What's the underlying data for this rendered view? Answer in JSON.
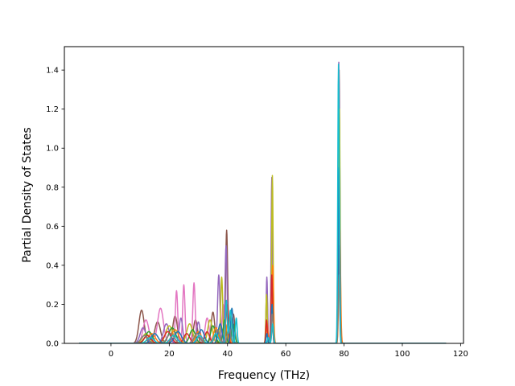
{
  "chart_data": {
    "type": "line",
    "title": "",
    "xlabel": "Frequency (THz)",
    "ylabel": "Partial Density of States",
    "xlim": [
      -16,
      121
    ],
    "ylim": [
      0,
      1.52
    ],
    "xticks": [
      0,
      20,
      40,
      60,
      80,
      100,
      120
    ],
    "yticks": [
      0.0,
      0.2,
      0.4,
      0.6,
      0.8,
      1.0,
      1.2,
      1.4
    ],
    "xtick_labels": [
      "0",
      "20",
      "40",
      "60",
      "80",
      "100",
      "120"
    ],
    "ytick_labels": [
      "0.0",
      "0.2",
      "0.4",
      "0.6",
      "0.8",
      "1.0",
      "1.2",
      "1.4"
    ],
    "grid": false,
    "legend": "none",
    "colors": [
      "#1f77b4",
      "#ff7f0e",
      "#2ca02c",
      "#d62728",
      "#9467bd",
      "#8c564b",
      "#e377c2",
      "#7f7f7f",
      "#bcbd22",
      "#17becf"
    ],
    "x_range": [
      -11,
      115
    ],
    "series": [
      {
        "color": "#8c564b",
        "peaks": [
          [
            10.5,
            0.17,
            0.9
          ],
          [
            16,
            0.11,
            1.0
          ],
          [
            22,
            0.14,
            0.8
          ],
          [
            29,
            0.12,
            0.7
          ],
          [
            35,
            0.16,
            0.6
          ],
          [
            39.7,
            0.58,
            0.35
          ],
          [
            42,
            0.15,
            0.5
          ],
          [
            53.5,
            0.28,
            0.25
          ],
          [
            55.3,
            0.8,
            0.25
          ],
          [
            78.3,
            1.4,
            0.25
          ]
        ]
      },
      {
        "color": "#e377c2",
        "peaks": [
          [
            12,
            0.12,
            1.0
          ],
          [
            17,
            0.18,
            1.0
          ],
          [
            22.5,
            0.27,
            0.4
          ],
          [
            25,
            0.3,
            0.4
          ],
          [
            28.5,
            0.31,
            0.4
          ],
          [
            33,
            0.13,
            0.7
          ],
          [
            38.5,
            0.2,
            0.4
          ],
          [
            55.3,
            0.6,
            0.3
          ],
          [
            78.3,
            1.0,
            0.3
          ]
        ]
      },
      {
        "color": "#9467bd",
        "peaks": [
          [
            11,
            0.08,
            1.0
          ],
          [
            19,
            0.1,
            1.0
          ],
          [
            24,
            0.13,
            0.6
          ],
          [
            30,
            0.11,
            0.6
          ],
          [
            37,
            0.35,
            0.4
          ],
          [
            39.5,
            0.5,
            0.35
          ],
          [
            53.5,
            0.34,
            0.25
          ],
          [
            55.2,
            0.85,
            0.25
          ],
          [
            78.2,
            1.44,
            0.25
          ]
        ]
      },
      {
        "color": "#bcbd22",
        "peaks": [
          [
            12,
            0.05,
            1.2
          ],
          [
            20,
            0.09,
            1.2
          ],
          [
            27,
            0.1,
            1.0
          ],
          [
            34,
            0.12,
            0.8
          ],
          [
            38,
            0.34,
            0.35
          ],
          [
            41,
            0.14,
            0.5
          ],
          [
            53.4,
            0.25,
            0.25
          ],
          [
            55.4,
            0.86,
            0.25
          ],
          [
            78.4,
            1.2,
            0.25
          ]
        ]
      },
      {
        "color": "#2ca02c",
        "peaks": [
          [
            13,
            0.06,
            1.2
          ],
          [
            21,
            0.08,
            1.2
          ],
          [
            28,
            0.07,
            1.0
          ],
          [
            35,
            0.09,
            0.8
          ],
          [
            39,
            0.12,
            0.5
          ],
          [
            42,
            0.1,
            0.5
          ],
          [
            55.3,
            0.3,
            0.3
          ],
          [
            78.3,
            0.55,
            0.3
          ]
        ]
      },
      {
        "color": "#ff7f0e",
        "peaks": [
          [
            14,
            0.05,
            1.2
          ],
          [
            22,
            0.07,
            1.2
          ],
          [
            30,
            0.06,
            1.0
          ],
          [
            36,
            0.08,
            0.8
          ],
          [
            40,
            0.1,
            0.5
          ],
          [
            53.6,
            0.1,
            0.3
          ],
          [
            55.5,
            0.4,
            0.3
          ],
          [
            78.5,
            0.6,
            0.3
          ]
        ]
      },
      {
        "color": "#d62728",
        "peaks": [
          [
            12.5,
            0.04,
            1.2
          ],
          [
            19.5,
            0.06,
            1.2
          ],
          [
            26,
            0.05,
            1.0
          ],
          [
            33,
            0.06,
            0.8
          ],
          [
            39.8,
            0.2,
            0.4
          ],
          [
            53.4,
            0.12,
            0.25
          ],
          [
            55.2,
            0.35,
            0.25
          ],
          [
            78.2,
            0.5,
            0.25
          ]
        ]
      },
      {
        "color": "#1f77b4",
        "peaks": [
          [
            15,
            0.05,
            1.2
          ],
          [
            23,
            0.06,
            1.2
          ],
          [
            31,
            0.07,
            1.0
          ],
          [
            37.5,
            0.1,
            0.7
          ],
          [
            41.5,
            0.18,
            0.4
          ],
          [
            53.5,
            0.05,
            0.25
          ],
          [
            55.3,
            0.2,
            0.25
          ],
          [
            78.3,
            0.9,
            0.25
          ]
        ]
      },
      {
        "color": "#7f7f7f",
        "peaks": [
          [
            11.5,
            0.04,
            1.2
          ],
          [
            20.5,
            0.05,
            1.2
          ],
          [
            29.5,
            0.05,
            1.0
          ],
          [
            36.5,
            0.07,
            0.8
          ],
          [
            40.5,
            0.09,
            0.5
          ],
          [
            55.3,
            0.15,
            0.3
          ],
          [
            78.3,
            0.35,
            0.3
          ]
        ]
      },
      {
        "color": "#17becf",
        "peaks": [
          [
            13.5,
            0.03,
            1.2
          ],
          [
            21.5,
            0.04,
            1.2
          ],
          [
            30.5,
            0.04,
            1.0
          ],
          [
            36,
            0.05,
            0.8
          ],
          [
            39.6,
            0.22,
            0.3
          ],
          [
            41,
            0.17,
            0.4
          ],
          [
            43,
            0.13,
            0.3
          ],
          [
            54,
            0.03,
            0.3
          ],
          [
            55.5,
            0.1,
            0.3
          ],
          [
            78.1,
            1.43,
            0.25
          ]
        ]
      }
    ]
  }
}
